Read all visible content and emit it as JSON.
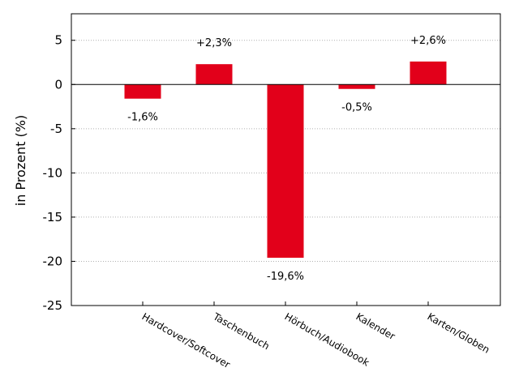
{
  "chart_data": {
    "type": "bar",
    "categories": [
      "Hardcover/Softcover",
      "Taschenbuch",
      "Hörbuch/Audiobook",
      "Kalender",
      "Karten/Globen"
    ],
    "values": [
      -1.6,
      2.3,
      -19.6,
      -0.5,
      2.6
    ],
    "data_labels": [
      "-1,6%",
      "+2,3%",
      "-19,6%",
      "-0,5%",
      "+2,6%"
    ],
    "ylabel": "in Prozent (%)",
    "ylim": [
      -25,
      8
    ],
    "yticks": [
      5,
      0,
      -5,
      -10,
      -15,
      -20,
      -25
    ],
    "ytick_labels": [
      "5",
      "0",
      "-5",
      "-10",
      "-15",
      "-20",
      "-25"
    ],
    "grid": true,
    "bar_color": "#e2001a"
  }
}
